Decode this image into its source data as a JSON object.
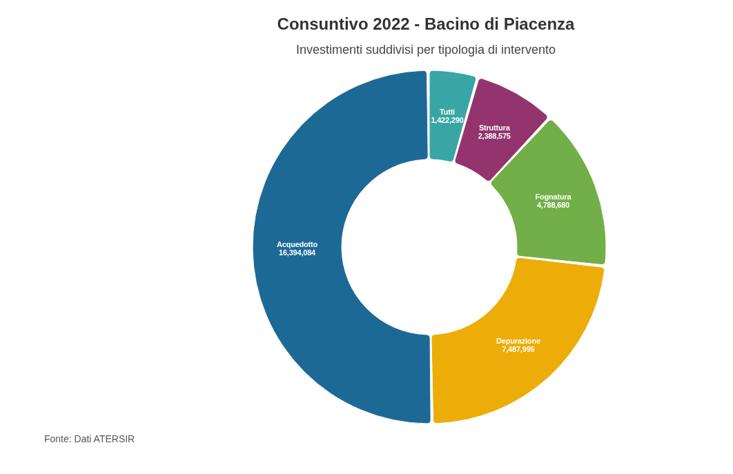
{
  "chart_data": {
    "type": "donut",
    "title": "Consuntivo 2022 - Bacino di Piacenza",
    "subtitle": "Investimenti suddivisi per tipologia di intervento",
    "categories": [
      "Tutti",
      "Struttura",
      "Fognatura",
      "Depurazione",
      "Acquedotto"
    ],
    "values": [
      1422290,
      2388575,
      4788680,
      7487995,
      16394084
    ],
    "value_labels": [
      "1,422,290",
      "2,388,575",
      "4,788,680",
      "7,487,995",
      "16,394,084"
    ],
    "colors": [
      "#38a6a5",
      "#94346e",
      "#73af48",
      "#edad08",
      "#1d6996"
    ],
    "annotations": [
      "Fonte: Dati ATERSIR"
    ]
  }
}
